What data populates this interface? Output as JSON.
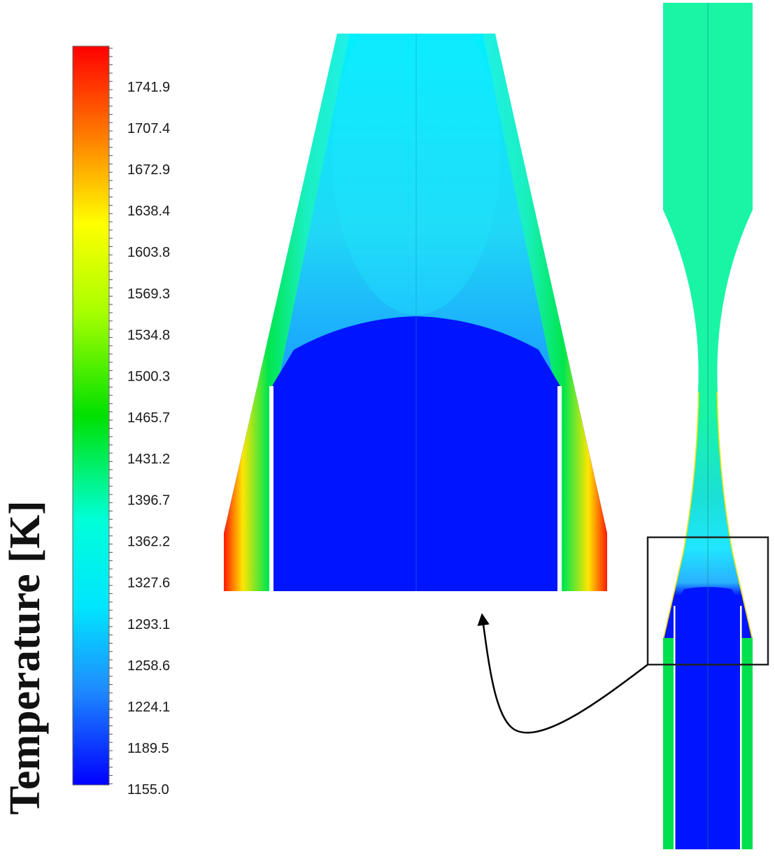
{
  "colorbar": {
    "title": "Temperature [K]",
    "tick_labels": [
      "1741.9",
      "1707.4",
      "1672.9",
      "1638.4",
      "1603.8",
      "1569.3",
      "1534.8",
      "1500.3",
      "1465.7",
      "1431.2",
      "1396.7",
      "1362.2",
      "1327.6",
      "1293.1",
      "1258.6",
      "1224.1",
      "1189.5",
      "1155.0"
    ],
    "min": 1155.0,
    "max": 1776.4,
    "colors": [
      "#ff0000",
      "#ff8c00",
      "#ffff00",
      "#00e000",
      "#00ffff",
      "#1e90ff",
      "#0000ff"
    ]
  },
  "fields": {
    "cold_core_color": "#0015ff",
    "warm_gas_color": "#19f5a5",
    "mid_gas_color": "#1ad9f0",
    "wall_hot_color": "#ff1a00"
  }
}
